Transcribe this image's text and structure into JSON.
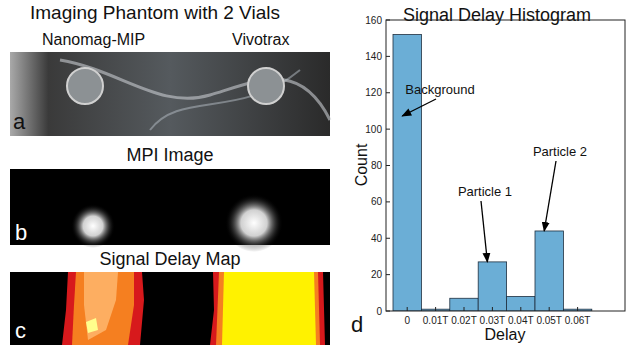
{
  "panels": {
    "a": {
      "label": "a",
      "title": "Imaging Phantom with 2 Vials",
      "vials": [
        "Nanomag-MIP",
        "Vivotrax"
      ]
    },
    "b": {
      "label": "b",
      "title": "MPI Image"
    },
    "c": {
      "label": "c",
      "title": "Signal Delay Map"
    }
  },
  "chart_data": {
    "type": "bar",
    "label": "d",
    "title": "Signal Delay Histogram",
    "x_label": "Delay",
    "y_label": "Count",
    "categories": [
      "0",
      "0.01T",
      "0.02T",
      "0.03T",
      "0.04T",
      "0.05T",
      "0.06T"
    ],
    "values": [
      152,
      1,
      7,
      27,
      8,
      44,
      1
    ],
    "color": "#6baed6",
    "ylim": [
      0,
      160
    ],
    "yticks": [
      0,
      20,
      40,
      60,
      80,
      100,
      120,
      140,
      160
    ],
    "grid": false,
    "annotations": [
      {
        "text": "Background",
        "category": "0"
      },
      {
        "text": "Particle 1",
        "category": "0.03T"
      },
      {
        "text": "Particle 2",
        "category": "0.05T"
      }
    ]
  }
}
